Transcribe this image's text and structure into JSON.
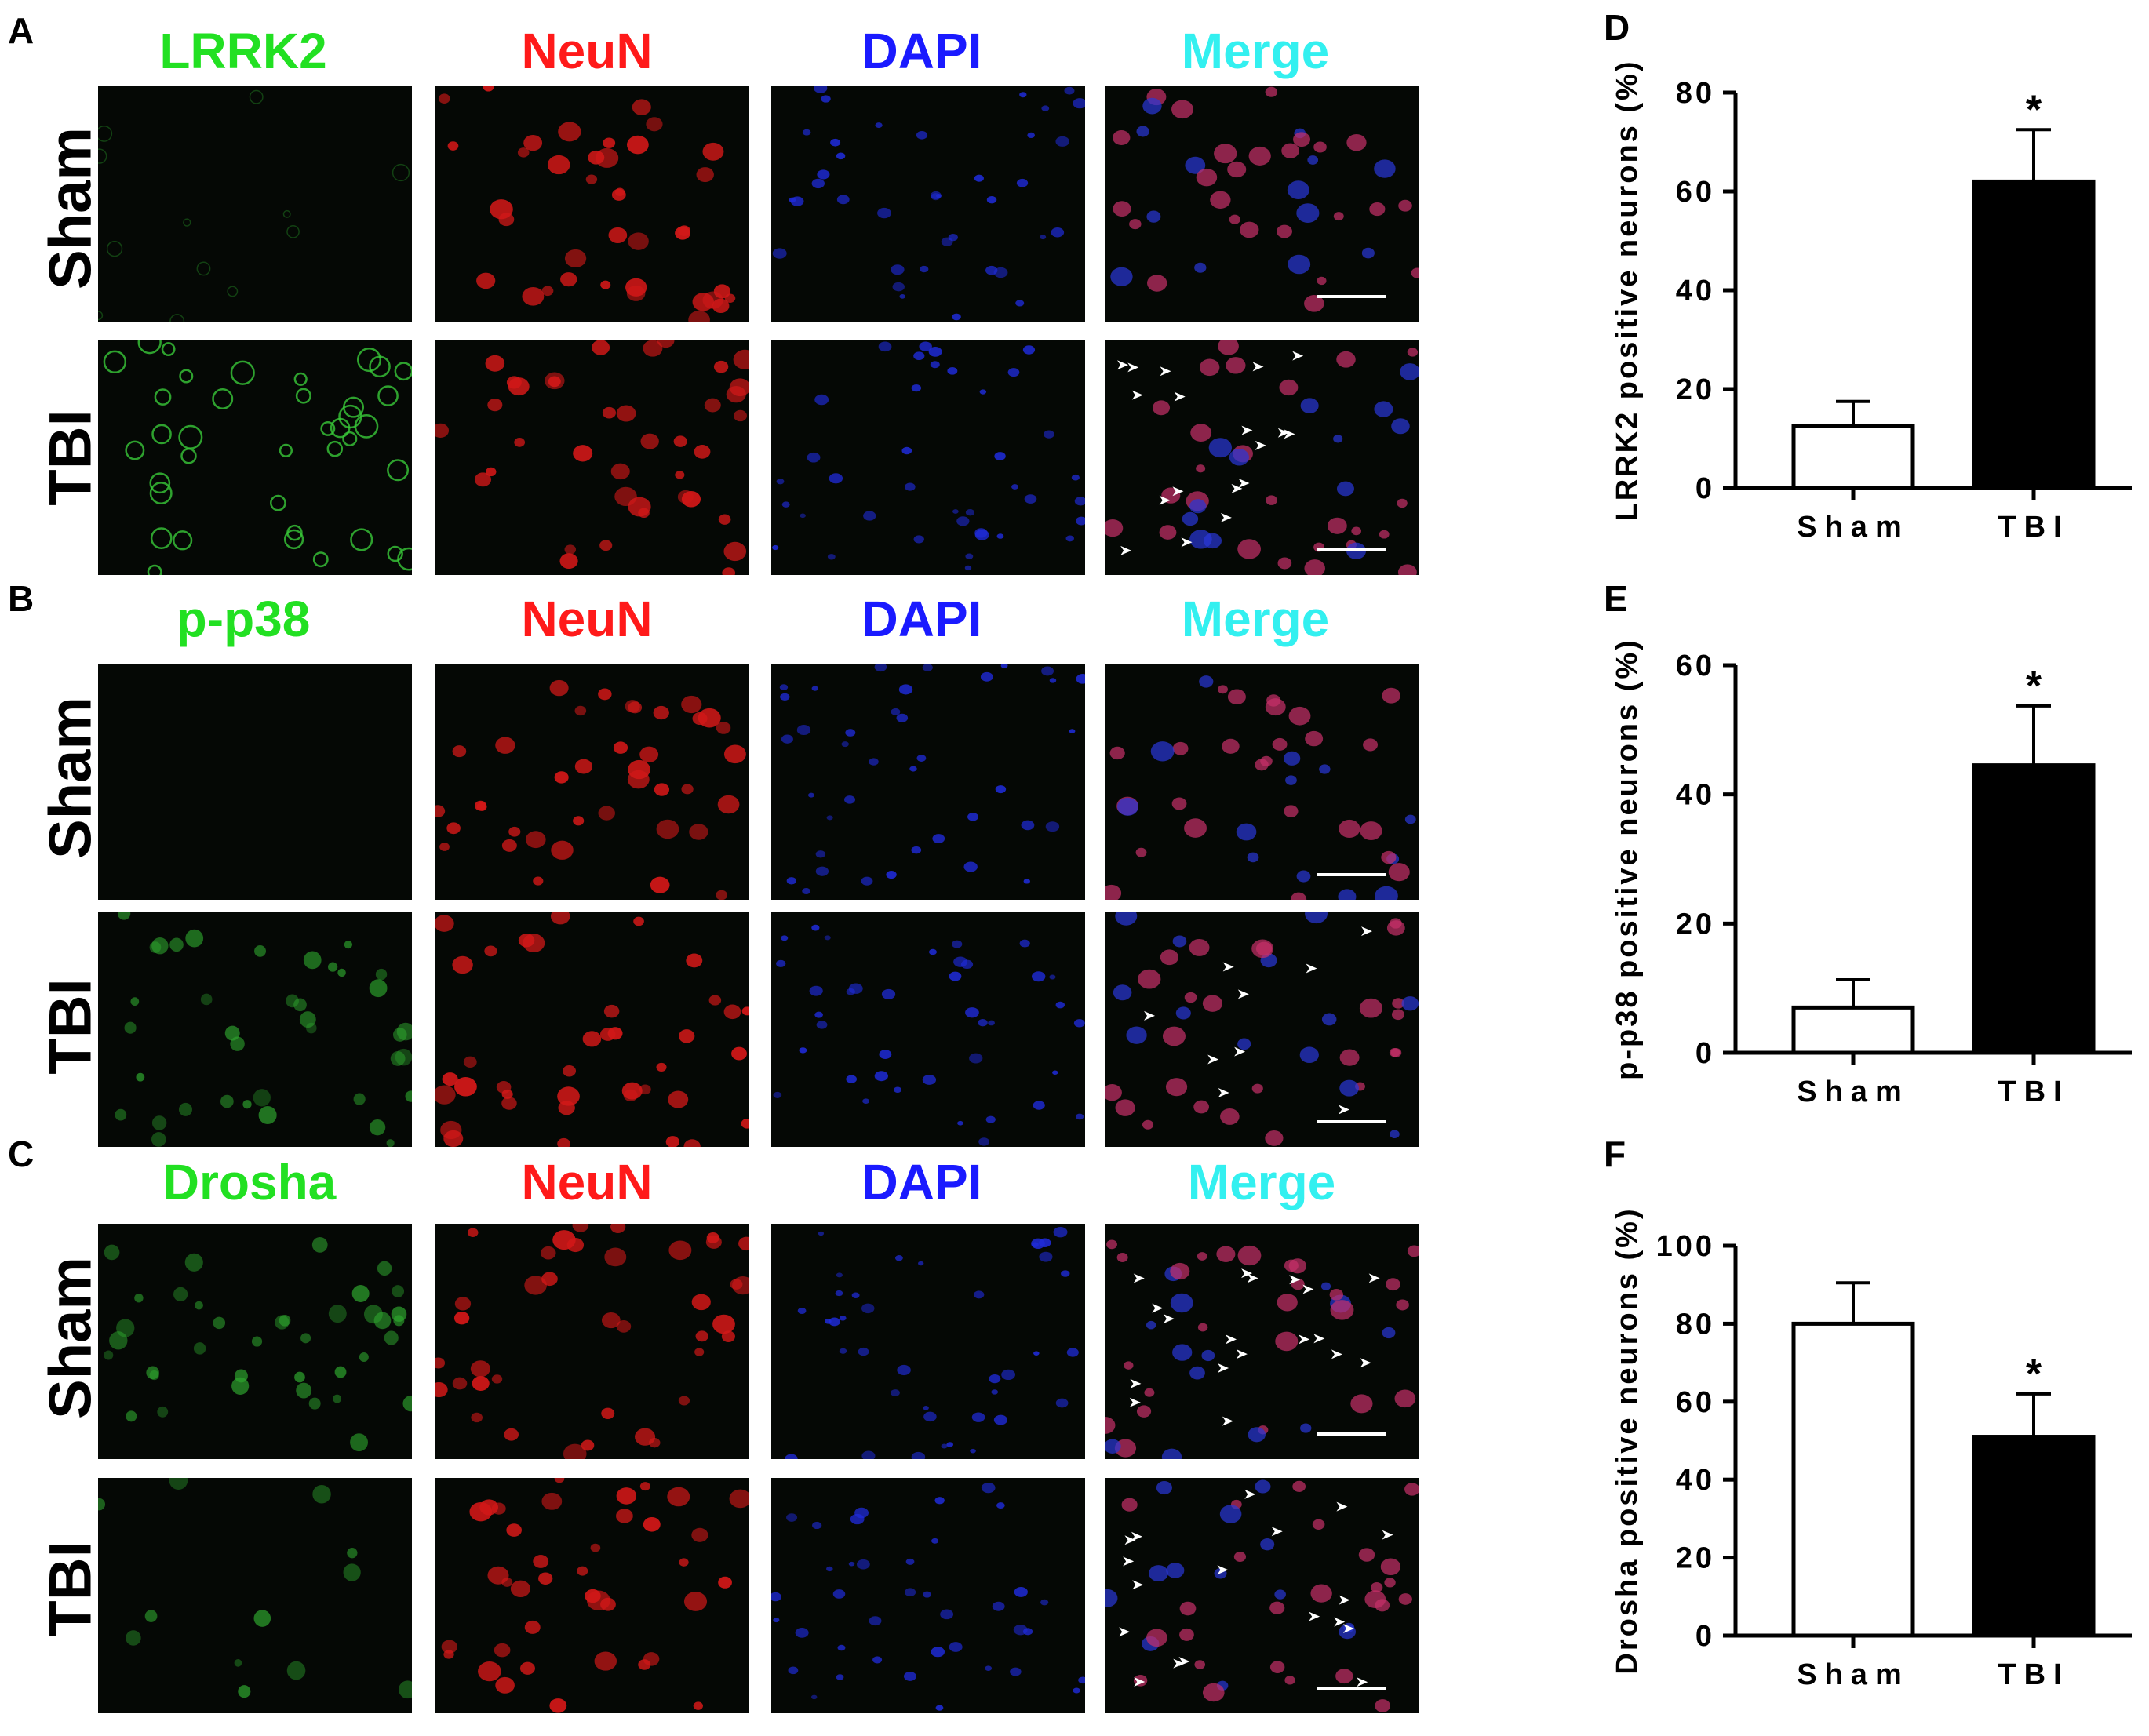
{
  "figure": {
    "panels": [
      {
        "letter": "A",
        "stains": [
          "LRRK2",
          "NeuN",
          "DAPI",
          "Merge"
        ],
        "rows": [
          "Sham",
          "TBI"
        ]
      },
      {
        "letter": "B",
        "stains": [
          "p-p38",
          "NeuN",
          "DAPI",
          "Merge"
        ],
        "rows": [
          "Sham",
          "TBI"
        ]
      },
      {
        "letter": "C",
        "stains": [
          "Drosha",
          "NeuN",
          "DAPI",
          "Merge"
        ],
        "rows": [
          "Sham",
          "TBI"
        ]
      }
    ],
    "stain_colors": {
      "marker": "#22e022",
      "NeuN": "#ff1a1a",
      "DAPI": "#1a1aff",
      "Merge": "#33f0f0"
    }
  },
  "chart_data": [
    {
      "panel": "D",
      "type": "bar",
      "categories": [
        "Sham",
        "TBI"
      ],
      "values": [
        12.5,
        62
      ],
      "errors": [
        5,
        10.5
      ],
      "ylabel": "LRRK2  positive neurons (%)",
      "ylim": [
        0,
        80
      ],
      "yticks": [
        0,
        20,
        40,
        60,
        80
      ],
      "fills": [
        "#ffffff",
        "#000000"
      ],
      "significance": [
        "",
        "*"
      ]
    },
    {
      "panel": "E",
      "type": "bar",
      "categories": [
        "Sham",
        "TBI"
      ],
      "values": [
        7,
        44.5
      ],
      "errors": [
        4.3,
        9.2
      ],
      "ylabel": "p-p38  positive neurons (%)",
      "ylim": [
        0,
        60
      ],
      "yticks": [
        0,
        20,
        40,
        60
      ],
      "fills": [
        "#ffffff",
        "#000000"
      ],
      "significance": [
        "",
        "*"
      ]
    },
    {
      "panel": "F",
      "type": "bar",
      "categories": [
        "Sham",
        "TBI"
      ],
      "values": [
        80,
        51
      ],
      "errors": [
        10.5,
        11
      ],
      "ylabel": "Drosha  positive neurons (%)",
      "ylim": [
        0,
        100
      ],
      "yticks": [
        0,
        20,
        40,
        60,
        80,
        100
      ],
      "fills": [
        "#ffffff",
        "#000000"
      ],
      "significance": [
        "",
        "*"
      ]
    }
  ]
}
